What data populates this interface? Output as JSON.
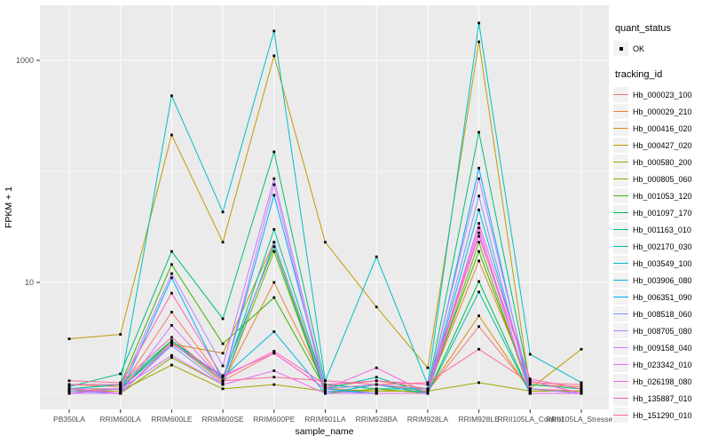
{
  "legend": {
    "quant": {
      "title": "quant_status",
      "items": [
        {
          "label": "OK"
        }
      ]
    },
    "tracking": {
      "title": "tracking_id"
    }
  },
  "chart_data": {
    "type": "line",
    "title": "",
    "xlabel": "sample_name",
    "ylabel": "FPKM + 1",
    "yscale": "log10",
    "ylim": [
      0.93,
      3100
    ],
    "yticks_major": [
      10,
      1000
    ],
    "yticks_minor": [
      1,
      100
    ],
    "grid": true,
    "legend_position": "right",
    "panel_bg": "#EBEBEB",
    "grid_color": "#FFFFFF",
    "point_color": "#000000",
    "point_shape": "square",
    "categories": [
      "PB350LA",
      "RRIM600LA",
      "RRIM600LE",
      "RRIM600SE",
      "RRIM600PE",
      "RRIM901LA",
      "RRIM928BA",
      "RRIM928LA",
      "RRIM928LE",
      "RRII105LA_Control",
      "RRII105LA_Stressed"
    ],
    "series": [
      {
        "name": "Hb_000023_100",
        "color": "#F8766D",
        "values": [
          1.1,
          1.1,
          5.4,
          1.3,
          2.3,
          1.1,
          1.2,
          1.05,
          4.0,
          1.1,
          1.05
        ]
      },
      {
        "name": "Hb_000029_210",
        "color": "#EB8335",
        "values": [
          1.2,
          1.15,
          2.9,
          1.25,
          10.0,
          1.15,
          1.3,
          1.1,
          15.6,
          1.2,
          1.15
        ]
      },
      {
        "name": "Hb_000416_020",
        "color": "#D89000",
        "values": [
          1.05,
          1.1,
          2.8,
          2.3,
          23.0,
          1.1,
          1.05,
          1.05,
          5.0,
          1.05,
          1.05
        ]
      },
      {
        "name": "Hb_000427_020",
        "color": "#C09B00",
        "values": [
          3.1,
          3.4,
          213,
          23.0,
          1100,
          23.0,
          6.0,
          1.7,
          1470,
          1.1,
          2.5
        ]
      },
      {
        "name": "Hb_000580_200",
        "color": "#A3A500",
        "values": [
          1.05,
          1.05,
          1.8,
          1.1,
          1.2,
          1.05,
          1.05,
          1.05,
          1.25,
          1.05,
          1.05
        ]
      },
      {
        "name": "Hb_000805_060",
        "color": "#7CAE00",
        "values": [
          1.0,
          1.0,
          2.1,
          1.2,
          19.0,
          1.0,
          1.1,
          1.0,
          23.0,
          1.0,
          1.0
        ]
      },
      {
        "name": "Hb_001053_120",
        "color": "#39B600",
        "values": [
          1.1,
          1.2,
          14.5,
          2.8,
          7.3,
          1.1,
          1.2,
          1.1,
          19.0,
          1.1,
          1.0
        ]
      },
      {
        "name": "Hb_001097_170",
        "color": "#00BB4E",
        "values": [
          1.0,
          1.1,
          3.0,
          1.4,
          21.0,
          1.0,
          1.0,
          1.0,
          10.2,
          1.0,
          1.0
        ]
      },
      {
        "name": "Hb_001163_010",
        "color": "#00BF7D",
        "values": [
          1.15,
          1.5,
          19.0,
          4.7,
          150,
          1.2,
          1.1,
          1.1,
          225,
          1.2,
          1.1
        ]
      },
      {
        "name": "Hb_002170_030",
        "color": "#00C1A3",
        "values": [
          1.1,
          1.2,
          3.0,
          1.3,
          30.0,
          1.1,
          1.4,
          1.0,
          8.2,
          1.0,
          1.0
        ]
      },
      {
        "name": "Hb_003549_100",
        "color": "#00BFC4",
        "values": [
          1.2,
          1.2,
          480,
          43.0,
          1840,
          1.3,
          17.0,
          1.2,
          2170,
          2.25,
          1.25
        ]
      },
      {
        "name": "Hb_003906_080",
        "color": "#00BADE",
        "values": [
          1.0,
          1.1,
          2.8,
          1.4,
          3.6,
          1.0,
          1.2,
          1.0,
          45.0,
          1.1,
          1.0
        ]
      },
      {
        "name": "Hb_006351_090",
        "color": "#00ABFD",
        "values": [
          1.1,
          1.0,
          11.0,
          1.3,
          61.0,
          1.1,
          1.0,
          1.0,
          107,
          1.0,
          1.0
        ]
      },
      {
        "name": "Hb_008518_060",
        "color": "#7C96FF",
        "values": [
          1.05,
          1.0,
          2.7,
          1.2,
          23.0,
          1.05,
          1.0,
          1.0,
          60.0,
          1.0,
          1.0
        ]
      },
      {
        "name": "Hb_008705_080",
        "color": "#B983FF",
        "values": [
          1.1,
          1.1,
          12.0,
          1.77,
          86.0,
          1.1,
          1.2,
          1.1,
          86.0,
          1.1,
          1.0
        ]
      },
      {
        "name": "Hb_009158_040",
        "color": "#D277FF",
        "values": [
          1.0,
          1.0,
          4.1,
          1.3,
          76.0,
          1.0,
          1.0,
          1.0,
          28.0,
          1.0,
          1.0
        ]
      },
      {
        "name": "Hb_023342_010",
        "color": "#E76BF3",
        "values": [
          1.0,
          1.1,
          2.2,
          1.2,
          1.6,
          1.0,
          1.0,
          1.0,
          31.0,
          1.0,
          1.0
        ]
      },
      {
        "name": "Hb_026198_080",
        "color": "#F763DF",
        "values": [
          1.1,
          1.0,
          2.8,
          1.45,
          2.3,
          1.1,
          1.7,
          1.0,
          34.0,
          1.3,
          1.0
        ]
      },
      {
        "name": "Hb_135887_010",
        "color": "#FF62BC",
        "values": [
          1.2,
          1.2,
          8.0,
          1.4,
          2.4,
          1.2,
          1.3,
          1.2,
          26.0,
          1.35,
          1.1
        ]
      },
      {
        "name": "Hb_151290_010",
        "color": "#FF6A95",
        "values": [
          1.3,
          1.25,
          3.2,
          1.3,
          1.4,
          1.3,
          1.2,
          1.25,
          2.5,
          1.25,
          1.2
        ]
      }
    ]
  }
}
